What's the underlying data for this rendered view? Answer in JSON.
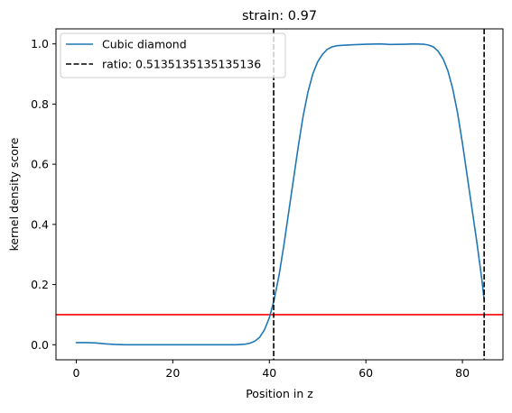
{
  "chart_data": {
    "type": "line",
    "title": "strain: 0.97",
    "xlabel": "Position in z",
    "ylabel": "kernel density score",
    "xlim": [
      -4.2,
      88.4
    ],
    "ylim": [
      -0.05,
      1.05
    ],
    "x_ticks": [
      0,
      20,
      40,
      60,
      80
    ],
    "y_ticks": [
      0.0,
      0.2,
      0.4,
      0.6,
      0.8,
      1.0
    ],
    "x_tick_labels": [
      "0",
      "20",
      "40",
      "60",
      "80"
    ],
    "y_tick_labels": [
      "0.0",
      "0.2",
      "0.4",
      "0.6",
      "0.8",
      "1.0"
    ],
    "grid": false,
    "legend_position": "top-left",
    "series": [
      {
        "name": "Cubic diamond",
        "color": "#1f77b4",
        "style": "solid",
        "x": [
          0,
          2,
          4,
          6,
          8,
          10,
          15,
          20,
          25,
          30,
          33,
          35,
          36,
          37,
          38,
          39,
          40,
          41,
          42,
          43,
          44,
          45,
          46,
          47,
          48,
          49,
          50,
          51,
          52,
          53,
          54,
          55,
          57,
          60,
          63,
          65,
          68,
          70,
          72,
          73,
          74,
          75,
          76,
          77,
          78,
          79,
          80,
          81,
          82,
          83,
          84,
          84.5
        ],
        "y": [
          0.007,
          0.007,
          0.006,
          0.003,
          0.001,
          0.0,
          0.0,
          0.0,
          0.0,
          0.0,
          0.0,
          0.002,
          0.005,
          0.012,
          0.025,
          0.05,
          0.09,
          0.15,
          0.23,
          0.33,
          0.44,
          0.55,
          0.66,
          0.76,
          0.84,
          0.9,
          0.94,
          0.965,
          0.982,
          0.99,
          0.994,
          0.995,
          0.997,
          0.999,
          1.0,
          0.998,
          0.999,
          1.0,
          0.999,
          0.996,
          0.99,
          0.975,
          0.95,
          0.91,
          0.85,
          0.77,
          0.67,
          0.56,
          0.45,
          0.34,
          0.22,
          0.15
        ]
      }
    ],
    "vlines": [
      {
        "x": 40.9,
        "color": "#000000",
        "style": "dashed",
        "legend": "ratio: 0.5135135135135136"
      },
      {
        "x": 84.5,
        "color": "#000000",
        "style": "dashed",
        "legend": ""
      }
    ],
    "hlines": [
      {
        "y": 0.1,
        "color": "#ff0000",
        "style": "solid"
      }
    ],
    "legend": [
      {
        "label": "Cubic diamond",
        "color": "#1f77b4",
        "style": "solid"
      },
      {
        "label": "ratio: 0.5135135135135136",
        "color": "#000000",
        "style": "dashed"
      }
    ]
  }
}
